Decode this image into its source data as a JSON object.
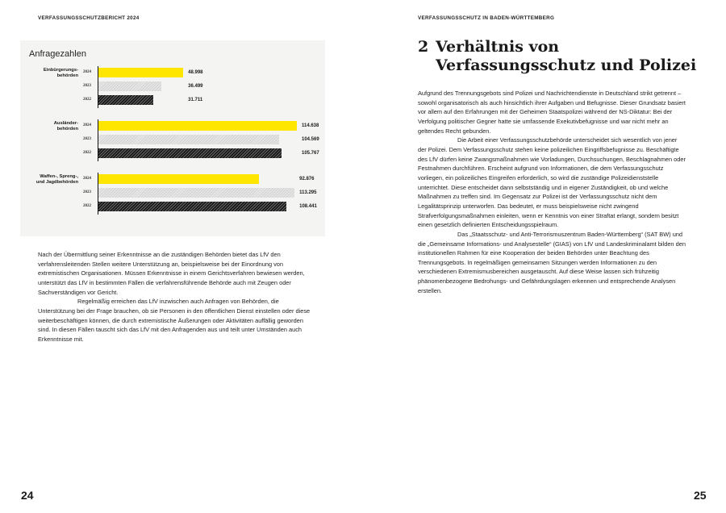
{
  "left_page": {
    "header": "VERFASSUNGSSCHUTZBERICHT 2024",
    "page_number": "24",
    "paragraphs": [
      "Nach der Übermittlung seiner Erkenntnisse an die zuständigen Behörden bietet das LfV den verfahrensleitenden Stellen weitere Unterstützung an, beispielsweise bei der Einordnung von extremistischen Organisationen. Müssen Erkenntnisse in einem Gerichtsverfahren bewiesen werden, unterstützt das LfV in bestimmten Fällen die verfahrensführende Behörde auch mit Zeugen oder Sachverständigen vor Gericht.",
      "Regelmäßig erreichen das LfV inzwischen auch Anfragen von Behörden, die Unterstützung bei der Frage brauchen, ob sie Personen in den öffentlichen Dienst einstellen oder diese weiterbeschäftigen können, die durch extremistische Äußerungen oder Aktivitäten auffällig geworden sind. In diesen Fällen tauscht sich das LfV mit den Anfragenden aus und teilt unter Umständen auch Erkenntnisse mit."
    ]
  },
  "right_page": {
    "header": "VERFASSUNGSSCHUTZ IN BADEN-WÜRTTEMBERG",
    "page_number": "25",
    "chapter_number": "2",
    "chapter_title": "Verhältnis von Verfassungsschutz und Polizei",
    "paragraphs": [
      "Aufgrund des Trennungsgebots sind Polizei und Nachrichtendienste in Deutschland strikt getrennt – sowohl organisatorisch als auch hinsichtlich ihrer Aufgaben und Befugnisse. Dieser Grundsatz basiert vor allem auf den Erfahrungen mit der Geheimen Staatspolizei während der NS-Diktatur: Bei der Verfolgung politischer Gegner hatte sie umfassende Exekutivbefugnisse und war nicht mehr an geltendes Recht gebunden.",
      "Die Arbeit einer Verfassungsschutzbehörde unterscheidet sich wesentlich von jener der Polizei. Dem Verfassungsschutz stehen keine polizeilichen Eingriffsbefugnisse zu. Beschäftigte des LfV dürfen keine Zwangsmaßnahmen wie Vorladungen, Durchsuchungen, Beschlagnahmen oder Festnahmen durchführen. Erscheint aufgrund von Informationen, die dem Verfassungsschutz vorliegen, ein polizeiliches Eingreifen erforderlich, so wird die zuständige Polizeidienststelle unterrichtet. Diese entscheidet dann selbstständig und in eigener Zuständigkeit, ob und welche Maßnahmen zu treffen sind. Im Gegensatz zur Polizei ist der Verfassungsschutz nicht dem Legalitätsprinzip unterworfen. Das bedeutet, er muss beispielsweise nicht zwingend Strafverfolgungsmaßnahmen einleiten, wenn er Kenntnis von einer Straftat erlangt, sondern besitzt einen gesetzlich definierten Entscheidungsspielraum.",
      "Das „Staatsschutz- und Anti-Terrorismuszentrum Baden-Württemberg“ (SAT BW) und die „Gemeinsame Informations- und Analysestelle“ (GIAS) von LfV und Landeskriminalamt bilden den institutionellen Rahmen für eine Kooperation der beiden Behörden unter Beachtung des Trennungsgebots. In regelmäßigen gemeinsamen Sitzungen werden Informationen zu den verschiedenen Extremismusbereichen ausgetauscht. Auf diese Weise lassen sich frühzeitig phänomenbezogene Bedrohungs- und Gefährdungslagen erkennen und entsprechende Analysen erstellen."
    ]
  },
  "chart_data": {
    "type": "bar",
    "orientation": "horizontal",
    "title": "Anfragezahlen",
    "groups": [
      {
        "label": "Einbürgerungs-\nbehörden",
        "bars": [
          {
            "year": "2024",
            "value": 48998,
            "label": "48.998"
          },
          {
            "year": "2023",
            "value": 36499,
            "label": "36.499"
          },
          {
            "year": "2022",
            "value": 31711,
            "label": "31.711"
          }
        ]
      },
      {
        "label": "Ausländer-\nbehörden",
        "bars": [
          {
            "year": "2024",
            "value": 114638,
            "label": "114.638"
          },
          {
            "year": "2023",
            "value": 104569,
            "label": "104.569"
          },
          {
            "year": "2022",
            "value": 105767,
            "label": "105.767"
          }
        ]
      },
      {
        "label": "Waffen-, Spreng-,\nund Jagdbehörden",
        "bars": [
          {
            "year": "2024",
            "value": 92876,
            "label": "92.876"
          },
          {
            "year": "2023",
            "value": 113295,
            "label": "113.295"
          },
          {
            "year": "2022",
            "value": 108441,
            "label": "108.441"
          }
        ]
      }
    ],
    "colors": {
      "2024": "#ffe600",
      "2023": "#d8d8d8 hatched",
      "2022": "#2a2a2a hatched"
    },
    "grid": false
  }
}
